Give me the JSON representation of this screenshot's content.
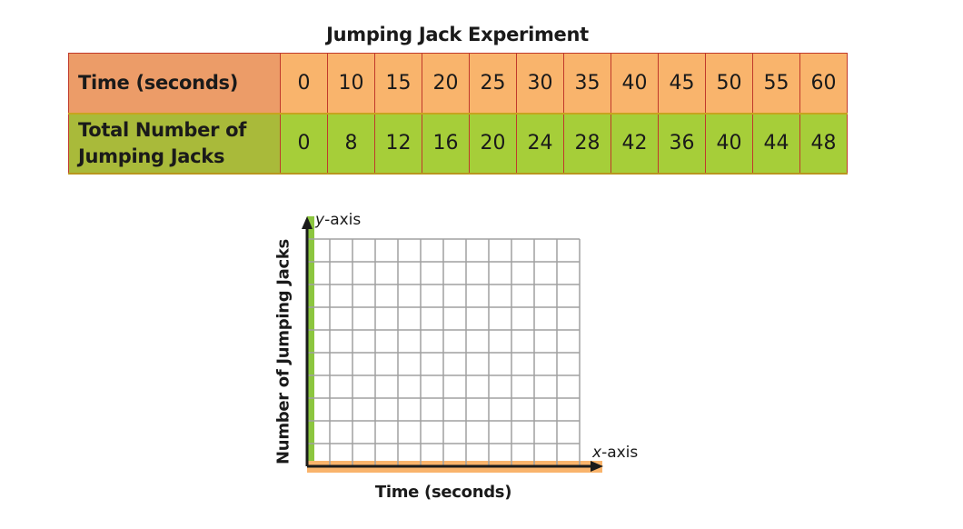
{
  "title": "Jumping Jack Experiment",
  "table": {
    "row1_label": "Time (seconds)",
    "row1_values": [
      "0",
      "10",
      "15",
      "20",
      "25",
      "30",
      "35",
      "40",
      "45",
      "50",
      "55",
      "60"
    ],
    "row2_label_line1": "Total Number of",
    "row2_label_line2": "Jumping Jacks",
    "row2_values": [
      "0",
      "8",
      "12",
      "16",
      "20",
      "24",
      "28",
      "42",
      "36",
      "40",
      "44",
      "48"
    ]
  },
  "graph": {
    "y_axis_name_var": "y",
    "y_axis_name_rest": "-axis",
    "x_axis_name_var": "x",
    "x_axis_name_rest": "-axis",
    "y_label": "Number of Jumping Jacks",
    "x_label": "Time (seconds)",
    "grid_columns": 12,
    "grid_rows": 10
  },
  "colors": {
    "header_orange": "#ec9c68",
    "cell_orange": "#f9b46c",
    "header_green": "#a9ba3a",
    "cell_green": "#a6ce39",
    "axis_green": "#8cc63f",
    "axis_orange": "#f9b46c",
    "grid": "#a0a0a0"
  }
}
